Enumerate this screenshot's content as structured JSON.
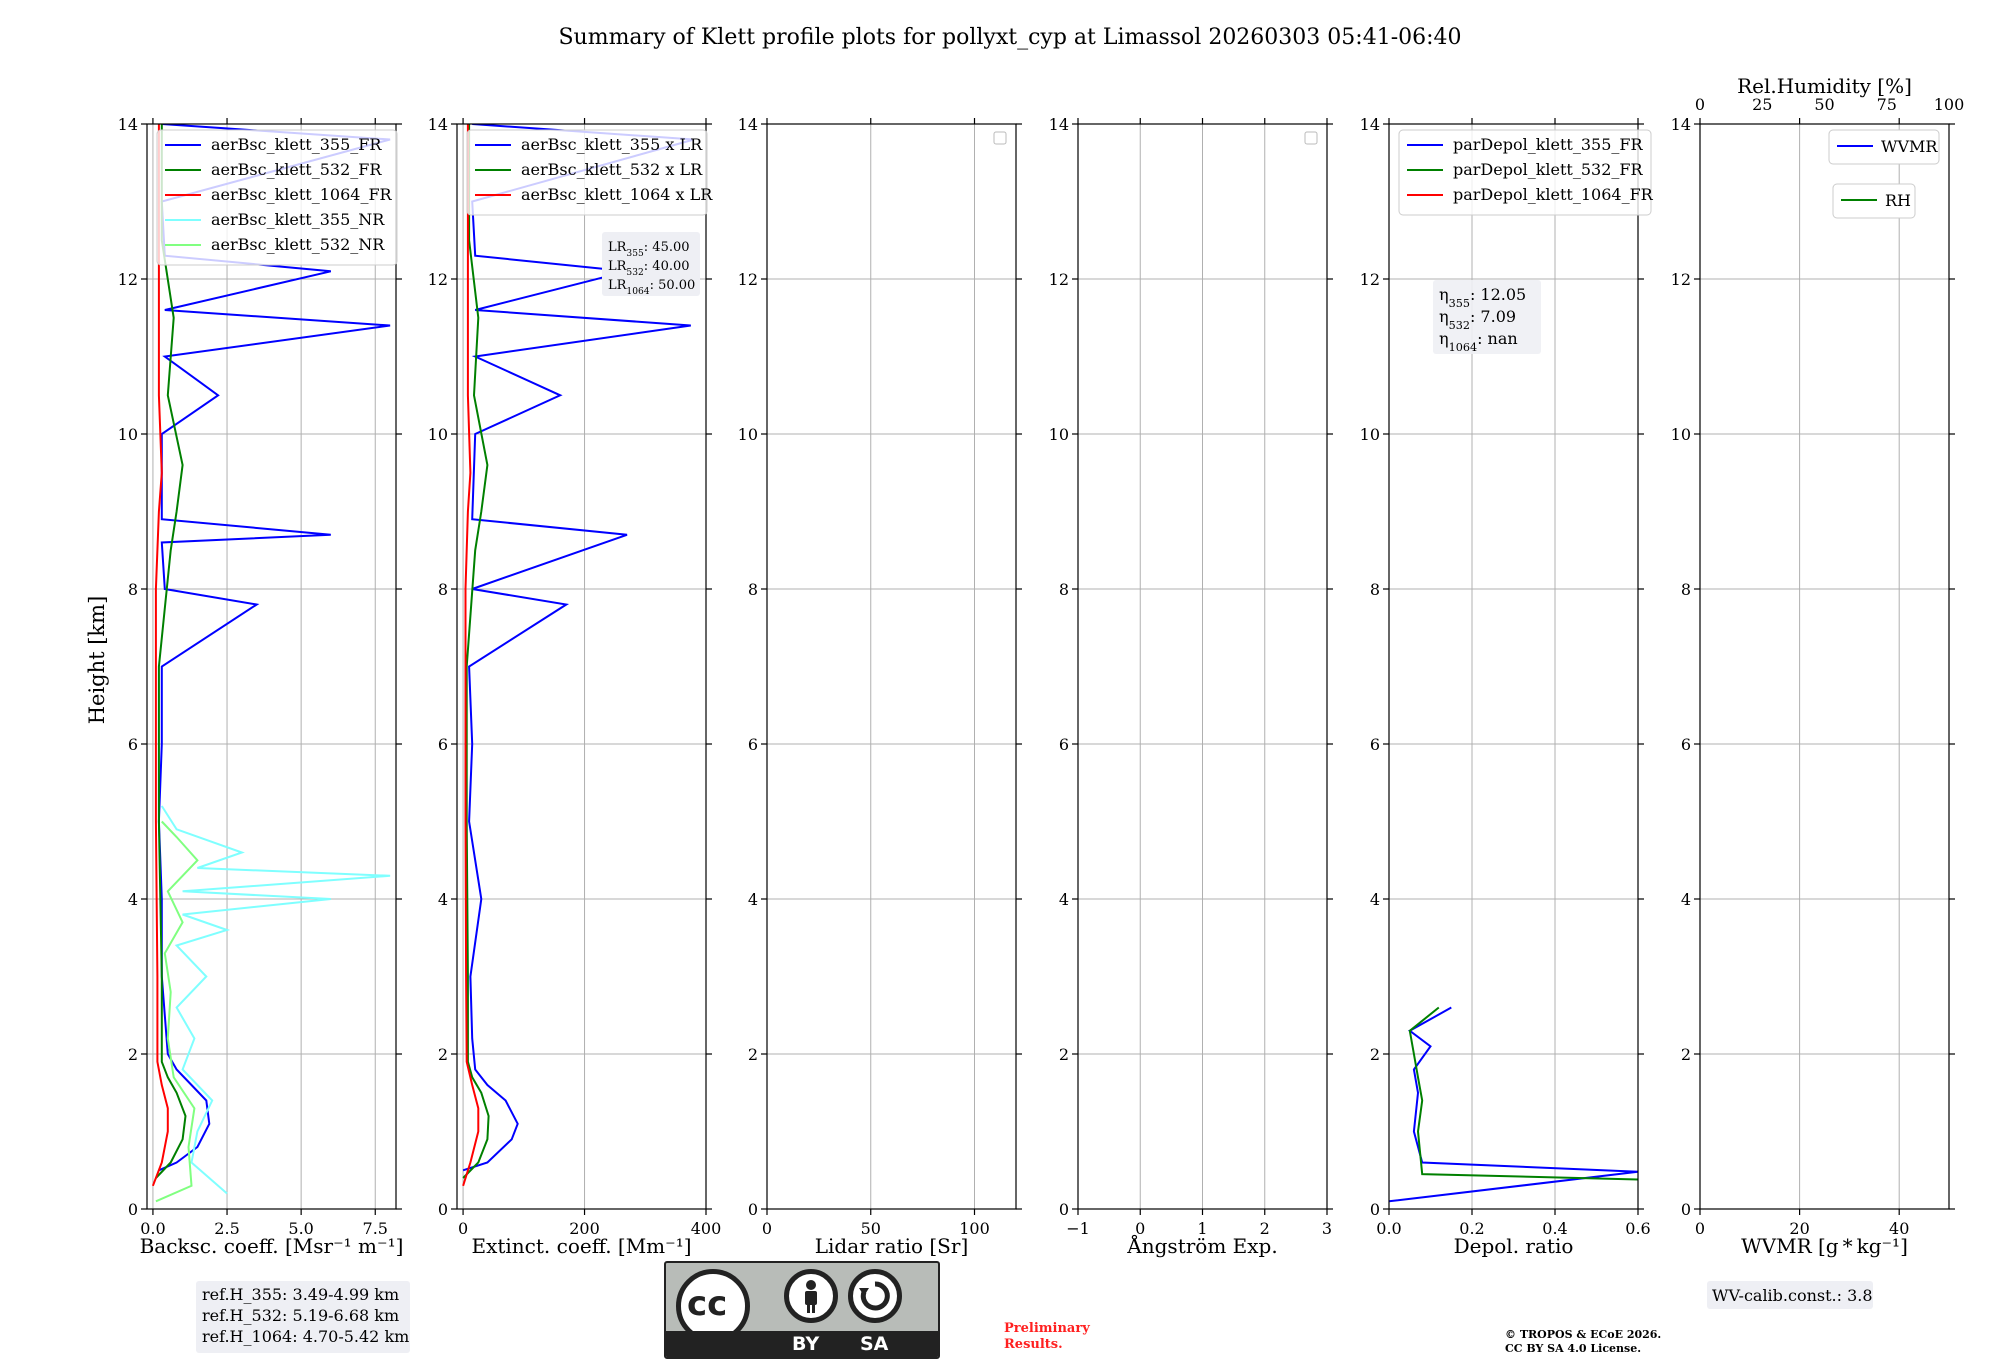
{
  "title": "Summary of Klett profile plots for pollyxt_cyp at Limassol 20260303 05:41-06:40",
  "ylabel": "Height [km]",
  "yticks": [
    "0",
    "2",
    "4",
    "6",
    "8",
    "10",
    "12",
    "14"
  ],
  "colors": {
    "blue": "#0000ff",
    "green": "#008000",
    "red": "#ff0000",
    "cyan": "#7fffff",
    "lightgreen": "#80ff80"
  },
  "chart_data": [
    {
      "type": "line",
      "xlabel": "Backsc. coeff. [Msr⁻¹ m⁻¹]",
      "xlim": [
        -0.2,
        8.2
      ],
      "ylim": [
        0,
        14
      ],
      "xticks": [
        "0.0",
        "2.5",
        "5.0",
        "7.5"
      ],
      "legend": [
        "aerBsc_klett_355_FR",
        "aerBsc_klett_532_FR",
        "aerBsc_klett_1064_FR",
        "aerBsc_klett_355_NR",
        "aerBsc_klett_532_NR"
      ],
      "series": [
        {
          "name": "aerBsc_klett_355_FR",
          "color": "#0000ff",
          "points": [
            [
              0.2,
              0.5
            ],
            [
              0.8,
              0.6
            ],
            [
              1.5,
              0.8
            ],
            [
              1.9,
              1.1
            ],
            [
              1.8,
              1.4
            ],
            [
              1.3,
              1.6
            ],
            [
              0.8,
              1.8
            ],
            [
              0.5,
              2.0
            ],
            [
              0.4,
              2.5
            ],
            [
              0.3,
              3.0
            ],
            [
              0.3,
              4.0
            ],
            [
              0.2,
              5.0
            ],
            [
              0.3,
              6.0
            ],
            [
              0.3,
              7.0
            ],
            [
              3.5,
              7.8
            ],
            [
              0.4,
              8.0
            ],
            [
              0.3,
              8.6
            ],
            [
              6.0,
              8.7
            ],
            [
              0.3,
              8.9
            ],
            [
              0.3,
              10.0
            ],
            [
              2.2,
              10.5
            ],
            [
              0.4,
              11.0
            ],
            [
              8.0,
              11.4
            ],
            [
              0.4,
              11.6
            ],
            [
              6.0,
              12.1
            ],
            [
              0.4,
              12.3
            ],
            [
              0.3,
              13.0
            ],
            [
              8.0,
              13.8
            ],
            [
              0.3,
              14.0
            ]
          ]
        },
        {
          "name": "aerBsc_klett_532_FR",
          "color": "#008000",
          "points": [
            [
              0.1,
              0.4
            ],
            [
              0.6,
              0.6
            ],
            [
              1.0,
              0.9
            ],
            [
              1.1,
              1.2
            ],
            [
              0.8,
              1.5
            ],
            [
              0.5,
              1.7
            ],
            [
              0.3,
              1.9
            ],
            [
              0.3,
              3.0
            ],
            [
              0.2,
              5.0
            ],
            [
              0.2,
              7.0
            ],
            [
              0.6,
              8.5
            ],
            [
              0.8,
              9.0
            ],
            [
              1.0,
              9.6
            ],
            [
              0.5,
              10.5
            ],
            [
              0.7,
              11.5
            ],
            [
              0.3,
              12.5
            ],
            [
              0.3,
              14.0
            ]
          ]
        },
        {
          "name": "aerBsc_klett_1064_FR",
          "color": "#ff0000",
          "points": [
            [
              0.0,
              0.3
            ],
            [
              0.3,
              0.6
            ],
            [
              0.5,
              1.0
            ],
            [
              0.5,
              1.3
            ],
            [
              0.3,
              1.6
            ],
            [
              0.15,
              1.9
            ],
            [
              0.15,
              3.0
            ],
            [
              0.1,
              5.0
            ],
            [
              0.1,
              8.0
            ],
            [
              0.2,
              9.0
            ],
            [
              0.3,
              9.5
            ],
            [
              0.2,
              10.5
            ],
            [
              0.2,
              12.0
            ],
            [
              0.2,
              14.0
            ]
          ]
        },
        {
          "name": "aerBsc_klett_355_NR",
          "color": "#7fffff",
          "points": [
            [
              2.5,
              0.2
            ],
            [
              1.3,
              0.6
            ],
            [
              1.5,
              1.0
            ],
            [
              2.0,
              1.4
            ],
            [
              1.0,
              1.8
            ],
            [
              1.4,
              2.2
            ],
            [
              0.8,
              2.6
            ],
            [
              1.8,
              3.0
            ],
            [
              0.8,
              3.4
            ],
            [
              2.5,
              3.6
            ],
            [
              1.0,
              3.8
            ],
            [
              6.0,
              4.0
            ],
            [
              1.0,
              4.1
            ],
            [
              8.0,
              4.3
            ],
            [
              1.5,
              4.4
            ],
            [
              3.0,
              4.6
            ],
            [
              0.8,
              4.9
            ],
            [
              0.3,
              5.2
            ]
          ]
        },
        {
          "name": "aerBsc_klett_532_NR",
          "color": "#80ff80",
          "points": [
            [
              0.1,
              0.1
            ],
            [
              1.3,
              0.3
            ],
            [
              1.2,
              0.8
            ],
            [
              1.4,
              1.3
            ],
            [
              0.7,
              1.7
            ],
            [
              0.5,
              2.2
            ],
            [
              0.6,
              2.8
            ],
            [
              0.4,
              3.3
            ],
            [
              1.0,
              3.7
            ],
            [
              0.5,
              4.1
            ],
            [
              1.5,
              4.5
            ],
            [
              0.8,
              4.8
            ],
            [
              0.3,
              5.0
            ]
          ]
        }
      ],
      "annotation": [
        "ref.H_355: 3.49-4.99 km",
        "ref.H_532: 5.19-6.68 km",
        "ref.H_1064: 4.70-5.42 km"
      ]
    },
    {
      "type": "line",
      "xlabel": "Extinct. coeff. [Mm⁻¹]",
      "xlim": [
        -10,
        400
      ],
      "ylim": [
        0,
        14
      ],
      "xticks": [
        "0",
        "200",
        "400"
      ],
      "legend": [
        "aerBsc_klett_355 x LR",
        "aerBsc_klett_532 x LR",
        "aerBsc_klett_1064 x LR"
      ],
      "series": [
        {
          "name": "aerBsc_klett_355 x LR",
          "color": "#0000ff",
          "points": [
            [
              0,
              0.5
            ],
            [
              40,
              0.6
            ],
            [
              80,
              0.9
            ],
            [
              90,
              1.1
            ],
            [
              70,
              1.4
            ],
            [
              40,
              1.6
            ],
            [
              20,
              1.8
            ],
            [
              15,
              2.2
            ],
            [
              12,
              3.0
            ],
            [
              30,
              4.0
            ],
            [
              10,
              5.0
            ],
            [
              15,
              6.0
            ],
            [
              10,
              7.0
            ],
            [
              170,
              7.8
            ],
            [
              15,
              8.0
            ],
            [
              270,
              8.7
            ],
            [
              15,
              8.9
            ],
            [
              20,
              10.0
            ],
            [
              160,
              10.5
            ],
            [
              20,
              11.0
            ],
            [
              375,
              11.4
            ],
            [
              20,
              11.6
            ],
            [
              270,
              12.1
            ],
            [
              20,
              12.3
            ],
            [
              15,
              13.0
            ],
            [
              380,
              13.8
            ],
            [
              15,
              14.0
            ]
          ]
        },
        {
          "name": "aerBsc_klett_532 x LR",
          "color": "#008000",
          "points": [
            [
              0,
              0.4
            ],
            [
              25,
              0.6
            ],
            [
              40,
              0.9
            ],
            [
              42,
              1.2
            ],
            [
              30,
              1.5
            ],
            [
              15,
              1.7
            ],
            [
              8,
              1.9
            ],
            [
              8,
              3.0
            ],
            [
              6,
              5.0
            ],
            [
              6,
              7.0
            ],
            [
              20,
              8.5
            ],
            [
              30,
              9.0
            ],
            [
              40,
              9.6
            ],
            [
              18,
              10.5
            ],
            [
              25,
              11.5
            ],
            [
              10,
              12.5
            ],
            [
              10,
              14.0
            ]
          ]
        },
        {
          "name": "aerBsc_klett_1064 x LR",
          "color": "#ff0000",
          "points": [
            [
              0,
              0.3
            ],
            [
              12,
              0.6
            ],
            [
              25,
              1.0
            ],
            [
              25,
              1.3
            ],
            [
              15,
              1.6
            ],
            [
              6,
              1.9
            ],
            [
              5,
              3.0
            ],
            [
              4,
              5.0
            ],
            [
              4,
              8.0
            ],
            [
              8,
              9.0
            ],
            [
              12,
              9.5
            ],
            [
              8,
              10.5
            ],
            [
              8,
              12.0
            ],
            [
              8,
              14.0
            ]
          ]
        }
      ],
      "annotation": [
        {
          "label": "LR",
          "sub": "355",
          "value": ": 45.00"
        },
        {
          "label": "LR",
          "sub": "532",
          "value": ": 40.00"
        },
        {
          "label": "LR",
          "sub": "1064",
          "value": ": 50.00"
        }
      ]
    },
    {
      "type": "line",
      "xlabel": "Lidar ratio [Sr]",
      "xlim": [
        0,
        120
      ],
      "ylim": [
        0,
        14
      ],
      "xticks": [
        "0",
        "50",
        "100"
      ],
      "series": []
    },
    {
      "type": "line",
      "xlabel": "Ångström Exp.",
      "xlim": [
        -1,
        3
      ],
      "ylim": [
        0,
        14
      ],
      "xticks": [
        "−1",
        "0",
        "1",
        "2",
        "3"
      ],
      "series": []
    },
    {
      "type": "line",
      "xlabel": "Depol. ratio",
      "xlim": [
        0,
        0.6
      ],
      "ylim": [
        0,
        14
      ],
      "xticks": [
        "0.0",
        "0.2",
        "0.4",
        "0.6"
      ],
      "legend": [
        "parDepol_klett_355_FR",
        "parDepol_klett_532_FR",
        "parDepol_klett_1064_FR"
      ],
      "series": [
        {
          "name": "parDepol_klett_355_FR",
          "color": "#0000ff",
          "points": [
            [
              0.0,
              0.1
            ],
            [
              0.6,
              0.48
            ],
            [
              0.08,
              0.6
            ],
            [
              0.06,
              1.0
            ],
            [
              0.07,
              1.5
            ],
            [
              0.06,
              1.8
            ],
            [
              0.1,
              2.1
            ],
            [
              0.05,
              2.3
            ],
            [
              0.15,
              2.6
            ]
          ]
        },
        {
          "name": "parDepol_klett_532_FR",
          "color": "#008000",
          "points": [
            [
              0.6,
              0.38
            ],
            [
              0.08,
              0.45
            ],
            [
              0.07,
              1.0
            ],
            [
              0.08,
              1.4
            ],
            [
              0.07,
              1.7
            ],
            [
              0.06,
              2.0
            ],
            [
              0.05,
              2.3
            ],
            [
              0.12,
              2.6
            ]
          ]
        },
        {
          "name": "parDepol_klett_1064_FR",
          "color": "#ff0000",
          "points": []
        }
      ],
      "annotation": [
        {
          "label": "η",
          "sub": "355",
          "value": ": 12.05"
        },
        {
          "label": "η",
          "sub": "532",
          "value": ": 7.09"
        },
        {
          "label": "η",
          "sub": "1064",
          "value": ": nan"
        }
      ]
    },
    {
      "type": "line",
      "xlabel": "WVMR [g * kg⁻¹]",
      "xlim": [
        0,
        50
      ],
      "ylim": [
        0,
        14
      ],
      "xticks": [
        "0",
        "20",
        "40"
      ],
      "top_xlabel": "Rel.Humidity [%]",
      "top_xlim": [
        0,
        100
      ],
      "top_xticks": [
        "0",
        "25",
        "50",
        "75",
        "100"
      ],
      "legend": [
        "WVMR",
        "RH"
      ],
      "series": [],
      "annotation": [
        "WV-calib.const.: 3.8"
      ]
    }
  ],
  "license": {
    "by": "BY",
    "sa": "SA"
  },
  "preliminary": [
    "Preliminary",
    "Results."
  ],
  "copyright": [
    "© TROPOS & ECoE 2026.",
    "CC BY SA 4.0 License."
  ]
}
